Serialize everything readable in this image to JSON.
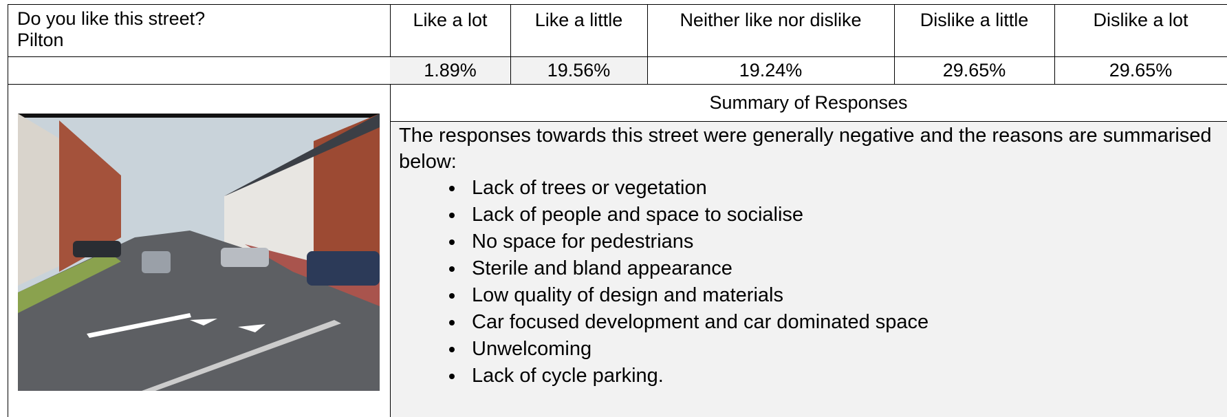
{
  "header": {
    "question": "Do you like this street?",
    "location": "Pilton",
    "options": [
      "Like a lot",
      "Like a little",
      "Neither like nor dislike",
      "Dislike a little",
      "Dislike a lot"
    ]
  },
  "percentages": [
    "1.89%",
    "19.56%",
    "19.24%",
    "29.65%",
    "29.65%"
  ],
  "summary": {
    "title": "Summary of Responses",
    "intro": "The responses towards this street were generally negative and the reasons are summarised below:",
    "reasons": [
      "Lack of trees or vegetation",
      "Lack of people and space to socialise",
      "No space for pedestrians",
      "Sterile and bland appearance",
      "Low quality of design and materials",
      "Car focused development and car dominated space",
      "Unwelcoming",
      "Lack of cycle parking."
    ]
  }
}
